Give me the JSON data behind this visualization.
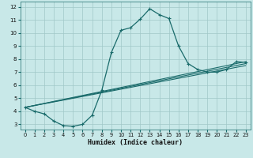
{
  "xlabel": "Humidex (Indice chaleur)",
  "background_color": "#c8e8e8",
  "grid_color": "#a0c8c8",
  "line_color": "#1a6b6b",
  "xlim": [
    -0.5,
    23.5
  ],
  "ylim": [
    2.6,
    12.4
  ],
  "xticks": [
    0,
    1,
    2,
    3,
    4,
    5,
    6,
    7,
    8,
    9,
    10,
    11,
    12,
    13,
    14,
    15,
    16,
    17,
    18,
    19,
    20,
    21,
    22,
    23
  ],
  "yticks": [
    3,
    4,
    5,
    6,
    7,
    8,
    9,
    10,
    11,
    12
  ],
  "main_series": {
    "x": [
      0,
      1,
      2,
      3,
      4,
      5,
      6,
      7,
      8,
      9,
      10,
      11,
      12,
      13,
      14,
      15,
      16,
      17,
      18,
      19,
      20,
      21,
      22,
      23
    ],
    "y": [
      4.3,
      4.0,
      3.8,
      3.25,
      2.9,
      2.85,
      3.0,
      3.7,
      5.6,
      8.5,
      10.2,
      10.4,
      11.05,
      11.85,
      11.4,
      11.1,
      9.0,
      7.65,
      7.2,
      7.0,
      7.0,
      7.2,
      7.8,
      7.75
    ]
  },
  "linear_series": [
    {
      "x": [
        0,
        23
      ],
      "y": [
        4.3,
        7.5
      ]
    },
    {
      "x": [
        0,
        23
      ],
      "y": [
        4.3,
        7.65
      ]
    },
    {
      "x": [
        0,
        23
      ],
      "y": [
        4.3,
        7.8
      ]
    }
  ]
}
